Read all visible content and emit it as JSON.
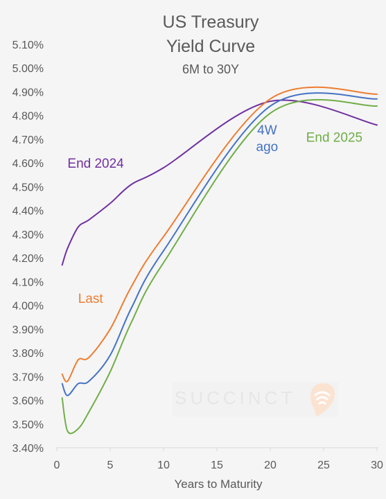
{
  "chart_data": {
    "type": "line",
    "title": [
      "US Treasury",
      "Yield Curve"
    ],
    "subtitle": "6M to 30Y",
    "xlabel": "Years to Maturity",
    "ylabel": "",
    "xlim": [
      0,
      30
    ],
    "ylim": [
      3.4,
      5.1
    ],
    "x_ticks": [
      0,
      5,
      10,
      15,
      20,
      25,
      30
    ],
    "x_tick_labels": [
      "0",
      "5",
      "10",
      "15",
      "20",
      "25",
      "30"
    ],
    "y_ticks": [
      3.4,
      3.5,
      3.6,
      3.7,
      3.8,
      3.9,
      4.0,
      4.1,
      4.2,
      4.3,
      4.4,
      4.5,
      4.6,
      4.7,
      4.8,
      4.9,
      5.0,
      5.1
    ],
    "y_tick_labels": [
      "3.40%",
      "3.50%",
      "3.60%",
      "3.70%",
      "3.80%",
      "3.90%",
      "4.00%",
      "4.10%",
      "4.20%",
      "4.30%",
      "4.40%",
      "4.50%",
      "4.60%",
      "4.70%",
      "4.80%",
      "4.90%",
      "5.00%",
      "5.10%"
    ],
    "grid": false,
    "legend": "none",
    "series": [
      {
        "name": "End 2024",
        "label_lines": [
          "End 2024"
        ],
        "label_anchor": "start",
        "label_at": [
          1.0,
          4.58
        ],
        "color": "#7030a0",
        "points": [
          [
            0.5,
            4.17
          ],
          [
            1,
            4.24
          ],
          [
            2,
            4.33
          ],
          [
            3,
            4.36
          ],
          [
            5,
            4.43
          ],
          [
            7,
            4.51
          ],
          [
            10,
            4.58
          ],
          [
            20,
            4.86
          ],
          [
            30,
            4.76
          ]
        ]
      },
      {
        "name": "Last",
        "label_lines": [
          "Last"
        ],
        "label_anchor": "start",
        "label_at": [
          2.0,
          4.01
        ],
        "color": "#ed7d31",
        "points": [
          [
            0.5,
            3.71
          ],
          [
            1,
            3.68
          ],
          [
            2,
            3.77
          ],
          [
            3,
            3.78
          ],
          [
            5,
            3.9
          ],
          [
            7,
            4.08
          ],
          [
            10,
            4.29
          ],
          [
            20,
            4.87
          ],
          [
            30,
            4.89
          ]
        ]
      },
      {
        "name": "4W ago",
        "label_lines": [
          "4W",
          "ago"
        ],
        "label_anchor": "middle",
        "label_at": [
          19.7,
          4.72
        ],
        "color": "#4472c4",
        "points": [
          [
            0.5,
            3.67
          ],
          [
            1,
            3.62
          ],
          [
            2,
            3.67
          ],
          [
            3,
            3.68
          ],
          [
            5,
            3.79
          ],
          [
            7,
            3.99
          ],
          [
            10,
            4.23
          ],
          [
            20,
            4.84
          ],
          [
            30,
            4.87
          ]
        ]
      },
      {
        "name": "End 2025",
        "label_lines": [
          "End 2025"
        ],
        "label_anchor": "middle",
        "label_at": [
          26.0,
          4.69
        ],
        "color": "#70ad47",
        "points": [
          [
            0.5,
            3.61
          ],
          [
            1,
            3.47
          ],
          [
            2,
            3.48
          ],
          [
            3,
            3.55
          ],
          [
            5,
            3.72
          ],
          [
            7,
            3.93
          ],
          [
            10,
            4.18
          ],
          [
            20,
            4.81
          ],
          [
            30,
            4.84
          ]
        ]
      }
    ],
    "watermark": "SUCCINCT"
  }
}
